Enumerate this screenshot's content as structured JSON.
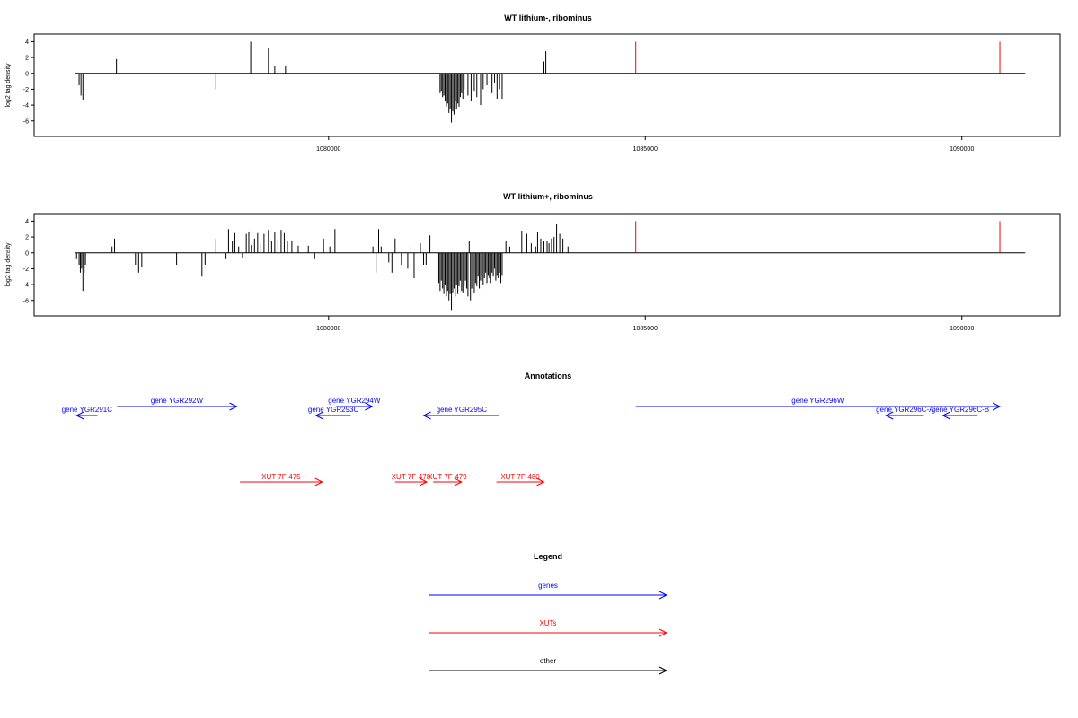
{
  "colors": {
    "gene": "#0000ff",
    "xut": "#ff0000",
    "other": "#000000",
    "marker": "#ff0000"
  },
  "chart_data": [
    {
      "type": "bar",
      "title": "WT lithium-, ribominus",
      "ylabel": "log2 tag density",
      "xlim": [
        1075350,
        1091550
      ],
      "ylim": [
        -7.5,
        4.5
      ],
      "yticks": [
        4,
        2,
        0,
        -2,
        -4,
        -6
      ],
      "xticks": [
        1080000,
        1085000,
        1090000
      ],
      "markers": [
        1084850,
        1090600
      ],
      "marker_height": 4,
      "bars": [
        [
          1076060,
          -1.5
        ],
        [
          1076090,
          -2.8
        ],
        [
          1076120,
          -3.3
        ],
        [
          1076650,
          1.8
        ],
        [
          1078220,
          -2
        ],
        [
          1078770,
          4
        ],
        [
          1079050,
          3.2
        ],
        [
          1079150,
          0.9
        ],
        [
          1079320,
          1
        ],
        [
          1081760,
          -2.5
        ],
        [
          1081780,
          -2.2
        ],
        [
          1081800,
          -3
        ],
        [
          1081820,
          -2.8
        ],
        [
          1081840,
          -3.5
        ],
        [
          1081860,
          -4.2
        ],
        [
          1081880,
          -3.8
        ],
        [
          1081900,
          -5
        ],
        [
          1081920,
          -4.5
        ],
        [
          1081940,
          -6.2
        ],
        [
          1081960,
          -4.8
        ],
        [
          1081980,
          -5.2
        ],
        [
          1082000,
          -3.5
        ],
        [
          1082020,
          -4.5
        ],
        [
          1082040,
          -3.8
        ],
        [
          1082060,
          -4.2
        ],
        [
          1082080,
          -3
        ],
        [
          1082100,
          -2.5
        ],
        [
          1082120,
          -3.2
        ],
        [
          1082140,
          -2
        ],
        [
          1082200,
          -2.8
        ],
        [
          1082250,
          -3.5
        ],
        [
          1082300,
          -2.2
        ],
        [
          1082340,
          -3
        ],
        [
          1082400,
          -4
        ],
        [
          1082440,
          -2
        ],
        [
          1082500,
          -1.5
        ],
        [
          1082580,
          -2.5
        ],
        [
          1082620,
          -1.2
        ],
        [
          1082660,
          -3.2
        ],
        [
          1082700,
          -2
        ],
        [
          1082740,
          -3.2
        ],
        [
          1083400,
          1.5
        ],
        [
          1083430,
          2.8
        ]
      ]
    },
    {
      "type": "bar",
      "title": "WT lithium+, ribominus",
      "ylabel": "log2 tag density",
      "xlim": [
        1075350,
        1091550
      ],
      "ylim": [
        -7.5,
        4.5
      ],
      "yticks": [
        4,
        2,
        0,
        -2,
        -4,
        -6
      ],
      "xticks": [
        1080000,
        1085000,
        1090000
      ],
      "markers": [
        1084850,
        1090600
      ],
      "marker_height": 4,
      "bars": [
        [
          1076020,
          -0.8
        ],
        [
          1076060,
          -1.5
        ],
        [
          1076080,
          -2.5
        ],
        [
          1076100,
          -2
        ],
        [
          1076120,
          -4.8
        ],
        [
          1076140,
          -2.5
        ],
        [
          1076160,
          -1.5
        ],
        [
          1076580,
          0.8
        ],
        [
          1076620,
          1.8
        ],
        [
          1076950,
          -1.5
        ],
        [
          1077000,
          -2.5
        ],
        [
          1077050,
          -1.8
        ],
        [
          1077600,
          -1.5
        ],
        [
          1078000,
          -3
        ],
        [
          1078050,
          -1.5
        ],
        [
          1078220,
          1.8
        ],
        [
          1078380,
          -0.8
        ],
        [
          1078420,
          3
        ],
        [
          1078480,
          1.5
        ],
        [
          1078520,
          2.5
        ],
        [
          1078580,
          0.8
        ],
        [
          1078640,
          -0.6
        ],
        [
          1078700,
          2.4
        ],
        [
          1078740,
          2.7
        ],
        [
          1078780,
          1
        ],
        [
          1078830,
          1.8
        ],
        [
          1078880,
          2.5
        ],
        [
          1078930,
          1.2
        ],
        [
          1078980,
          2.4
        ],
        [
          1079050,
          2.9
        ],
        [
          1079100,
          1.5
        ],
        [
          1079150,
          2.6
        ],
        [
          1079200,
          1.8
        ],
        [
          1079250,
          2.9
        ],
        [
          1079300,
          2.5
        ],
        [
          1079350,
          1.5
        ],
        [
          1079420,
          1.5
        ],
        [
          1079520,
          0.9
        ],
        [
          1079680,
          0.9
        ],
        [
          1079780,
          -0.8
        ],
        [
          1079920,
          1.8
        ],
        [
          1080020,
          0.8
        ],
        [
          1080100,
          3
        ],
        [
          1080700,
          0.8
        ],
        [
          1080750,
          -2.5
        ],
        [
          1080790,
          3
        ],
        [
          1080830,
          0.8
        ],
        [
          1080950,
          -1.2
        ],
        [
          1081000,
          -2.5
        ],
        [
          1081050,
          1.8
        ],
        [
          1081150,
          -1.5
        ],
        [
          1081250,
          -2
        ],
        [
          1081300,
          0.8
        ],
        [
          1081350,
          -3.2
        ],
        [
          1081450,
          1.2
        ],
        [
          1081500,
          -1.5
        ],
        [
          1081540,
          -1.5
        ],
        [
          1081600,
          2.2
        ],
        [
          1081740,
          -3.8
        ],
        [
          1081760,
          -4.8
        ],
        [
          1081780,
          -3.5
        ],
        [
          1081800,
          -4.5
        ],
        [
          1081820,
          -5.2
        ],
        [
          1081840,
          -4
        ],
        [
          1081860,
          -5.5
        ],
        [
          1081880,
          -4.8
        ],
        [
          1081900,
          -6
        ],
        [
          1081920,
          -5.2
        ],
        [
          1081940,
          -7.2
        ],
        [
          1081960,
          -5
        ],
        [
          1081980,
          -4.5
        ],
        [
          1082000,
          -5.5
        ],
        [
          1082020,
          -4
        ],
        [
          1082040,
          -5.2
        ],
        [
          1082060,
          -4.2
        ],
        [
          1082080,
          -3.5
        ],
        [
          1082100,
          -4.8
        ],
        [
          1082120,
          -5
        ],
        [
          1082140,
          -4.2
        ],
        [
          1082160,
          -3.5
        ],
        [
          1082180,
          -4.5
        ],
        [
          1082200,
          -5.5
        ],
        [
          1082220,
          1.5
        ],
        [
          1082240,
          -6
        ],
        [
          1082260,
          -4.5
        ],
        [
          1082280,
          -3.5
        ],
        [
          1082300,
          -5
        ],
        [
          1082320,
          -3.8
        ],
        [
          1082340,
          -4.2
        ],
        [
          1082360,
          -3
        ],
        [
          1082380,
          -4.5
        ],
        [
          1082400,
          -3.5
        ],
        [
          1082420,
          -2.8
        ],
        [
          1082440,
          -4
        ],
        [
          1082460,
          -3.2
        ],
        [
          1082480,
          -2.5
        ],
        [
          1082500,
          -3.8
        ],
        [
          1082520,
          -2.8
        ],
        [
          1082540,
          -3.2
        ],
        [
          1082560,
          -3.8
        ],
        [
          1082580,
          -2.5
        ],
        [
          1082600,
          -3
        ],
        [
          1082620,
          -2
        ],
        [
          1082640,
          -3.5
        ],
        [
          1082660,
          -2.8
        ],
        [
          1082680,
          -3.2
        ],
        [
          1082700,
          -2.5
        ],
        [
          1082720,
          -3.8
        ],
        [
          1082740,
          -2.8
        ],
        [
          1082800,
          1.5
        ],
        [
          1082860,
          0.8
        ],
        [
          1083050,
          2.8
        ],
        [
          1083130,
          2.4
        ],
        [
          1083200,
          1.2
        ],
        [
          1083270,
          0.8
        ],
        [
          1083300,
          2.6
        ],
        [
          1083350,
          1.8
        ],
        [
          1083400,
          1.5
        ],
        [
          1083450,
          1.5
        ],
        [
          1083480,
          1.2
        ],
        [
          1083520,
          1.8
        ],
        [
          1083560,
          2
        ],
        [
          1083600,
          3.6
        ],
        [
          1083650,
          2.4
        ],
        [
          1083700,
          1.8
        ],
        [
          1083780,
          0.8
        ]
      ]
    }
  ],
  "annotations": {
    "title": "Annotations",
    "genes": [
      {
        "label": "gene YGR291C",
        "start": 1076350,
        "end": 1076020,
        "row": 1
      },
      {
        "label": "gene YGR292W",
        "start": 1076660,
        "end": 1078550,
        "row": 0
      },
      {
        "label": "gene YGR293C",
        "start": 1080350,
        "end": 1079800,
        "row": 1
      },
      {
        "label": "gene YGR294W",
        "start": 1080120,
        "end": 1080690,
        "row": 0
      },
      {
        "label": "gene YGR295C",
        "start": 1082700,
        "end": 1081500,
        "row": 1
      },
      {
        "label": "gene YGR296W",
        "start": 1084850,
        "end": 1090600,
        "row": 0
      },
      {
        "label": "gene YGR296C-A",
        "start": 1089400,
        "end": 1088800,
        "row": 1
      },
      {
        "label": "gene YGR296C-B",
        "start": 1090250,
        "end": 1089700,
        "row": 1
      }
    ],
    "xuts": [
      {
        "label": "XUT 7F-475",
        "start": 1078600,
        "end": 1079900
      },
      {
        "label": "XUT 7F-478",
        "start": 1081050,
        "end": 1081550
      },
      {
        "label": "XUT 7F-479",
        "start": 1081650,
        "end": 1082100
      },
      {
        "label": "XUT 7F-480",
        "start": 1082650,
        "end": 1083400
      }
    ]
  },
  "legend": {
    "title": "Legend",
    "items": [
      {
        "label": "genes",
        "kind": "gene"
      },
      {
        "label": "XUTs",
        "kind": "xut"
      },
      {
        "label": "other",
        "kind": "other"
      }
    ]
  }
}
